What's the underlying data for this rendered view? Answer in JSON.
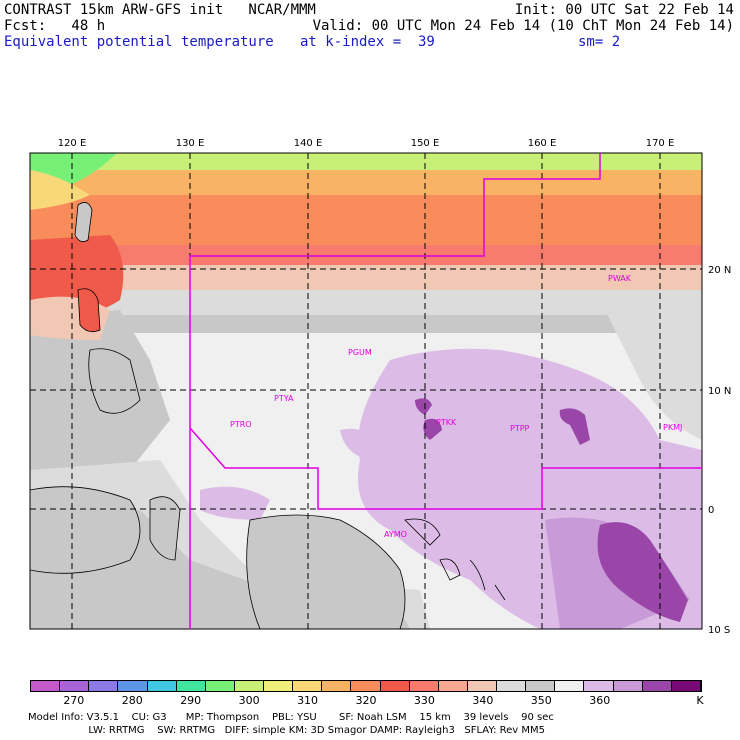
{
  "header": {
    "title": "CONTRAST 15km ARW-GFS init   NCAR/MMM",
    "init": "Init: 00 UTC Sat 22 Feb 14",
    "fcst": "Fcst:   48 h",
    "valid": "Valid: 00 UTC Mon 24 Feb 14 (10 ChT Mon 24 Feb 14)",
    "field": "Equivalent potential temperature",
    "level": "at k-index =  39",
    "smooth": "sm= 2"
  },
  "map": {
    "lon_labels": [
      "120 E",
      "130 E",
      "140 E",
      "150 E",
      "160 E",
      "170 E"
    ],
    "lat_labels": [
      "20 N",
      "10 N",
      "0",
      "10 S"
    ],
    "stations": [
      "PWAK",
      "PGUM",
      "PTYA",
      "PTRO",
      "PTKK",
      "PTPP",
      "PKMJ",
      "AYMO"
    ]
  },
  "colorbar": {
    "labels": [
      "270",
      "280",
      "290",
      "300",
      "310",
      "320",
      "330",
      "340",
      "350",
      "360"
    ],
    "unit": "K",
    "colors": [
      "#c45ac8",
      "#a664d8",
      "#8c7ae6",
      "#5c96e8",
      "#40c8e0",
      "#40e6a0",
      "#78f078",
      "#c8f078",
      "#f0f078",
      "#f8d878",
      "#f8b464",
      "#f88c5a",
      "#f05a4a",
      "#f87c6e",
      "#f8a890",
      "#f0c8b4",
      "#dcdcdc",
      "#c8c8c8",
      "#f0f0f0",
      "#dcbce6",
      "#c89ad8",
      "#9a46a8",
      "#780a78"
    ]
  },
  "footer": {
    "line1": "Model Info: V3.5.1    CU: G3      MP: Thompson    PBL: YSU       SF: Noah LSM    15 km    39 levels    90 sec",
    "line2": "                   LW: RRTMG    SW: RRTMG   DIFF: simple KM: 3D Smagor DAMP: Rayleigh3   SFLAY: Rev MM5"
  }
}
